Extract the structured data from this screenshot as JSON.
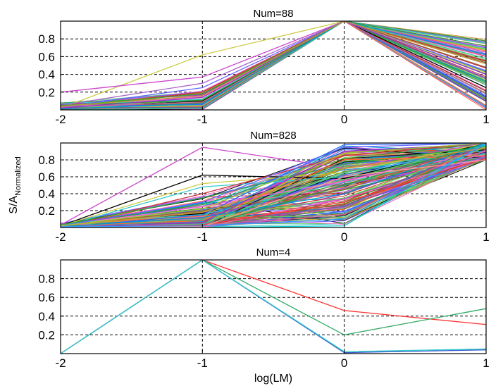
{
  "chart_data": [
    {
      "type": "line",
      "title": "Num=88",
      "x": [
        -2,
        -1,
        0,
        1
      ],
      "xlim": [
        -2,
        1
      ],
      "ylim": [
        0,
        1
      ],
      "xticks": [
        "-2",
        "-1",
        "0",
        "1"
      ],
      "yticks": [
        "0.2",
        "0.4",
        "0.6",
        "0.8"
      ],
      "grid": true,
      "series_count": 88,
      "series": [
        {
          "color": "#cccc44",
          "values": [
            0.02,
            0.62,
            1.0,
            0.42
          ]
        },
        {
          "color": "#cc44cc",
          "values": [
            0.2,
            0.37,
            1.0,
            0.65
          ]
        },
        {
          "color": "#aa66cc",
          "values": [
            0.05,
            0.3,
            1.0,
            0.76
          ]
        },
        {
          "color": "#6666ff",
          "values": [
            0.03,
            0.25,
            1.0,
            0.7
          ]
        },
        {
          "color": "#cc3333",
          "values": [
            0.02,
            0.2,
            1.0,
            0.55
          ]
        },
        {
          "color": "#33aa33",
          "values": [
            0.04,
            0.18,
            1.0,
            0.3
          ]
        },
        {
          "color": "#ff66cc",
          "values": [
            0.03,
            0.15,
            1.0,
            0.6
          ]
        },
        {
          "color": "#33cccc",
          "values": [
            0.05,
            0.12,
            1.0,
            0.75
          ]
        },
        {
          "color": "#000000",
          "values": [
            0.01,
            0.1,
            1.0,
            0.25
          ]
        },
        {
          "color": "#996633",
          "values": [
            0.02,
            0.08,
            1.0,
            0.48
          ]
        },
        {
          "color": "#3366ff",
          "values": [
            0.04,
            0.06,
            1.0,
            0.1
          ]
        },
        {
          "color": "#66cc66",
          "values": [
            0.03,
            0.05,
            1.0,
            0.68
          ]
        },
        {
          "color": "#ff6633",
          "values": [
            0.01,
            0.04,
            1.0,
            0.05
          ]
        },
        {
          "color": "#666699",
          "values": [
            0.02,
            0.03,
            1.0,
            0.35
          ]
        },
        {
          "color": "#33cc99",
          "values": [
            0.0,
            0.02,
            1.0,
            0.58
          ]
        },
        {
          "color": "#cc6699",
          "values": [
            0.03,
            0.09,
            1.0,
            0.18
          ]
        },
        {
          "color": "#339933",
          "values": [
            0.05,
            0.11,
            1.0,
            0.72
          ]
        },
        {
          "color": "#9933cc",
          "values": [
            0.02,
            0.14,
            1.0,
            0.4
          ]
        },
        {
          "color": "#0099cc",
          "values": [
            0.01,
            0.07,
            1.0,
            0.62
          ]
        },
        {
          "color": "#cc9933",
          "values": [
            0.04,
            0.16,
            1.0,
            0.52
          ]
        }
      ]
    },
    {
      "type": "line",
      "title": "Num=828",
      "ylabel": "S/A",
      "ylabel_subscript": "Normalized",
      "x": [
        -2,
        -1,
        0,
        1
      ],
      "xlim": [
        -2,
        1
      ],
      "ylim": [
        0,
        1
      ],
      "xticks": [
        "-2",
        "-1",
        "0",
        "1"
      ],
      "yticks": [
        "0.2",
        "0.4",
        "0.6",
        "0.8"
      ],
      "grid": true,
      "series_count": 828,
      "series": [
        {
          "color": "#cc44cc",
          "values": [
            0.03,
            0.95,
            0.7,
            1.0
          ]
        },
        {
          "color": "#000000",
          "values": [
            0.02,
            0.62,
            0.58,
            1.0
          ]
        },
        {
          "color": "#cccc44",
          "values": [
            0.02,
            0.52,
            0.65,
            1.0
          ]
        },
        {
          "color": "#33cccc",
          "values": [
            0.01,
            0.48,
            0.6,
            0.98
          ]
        },
        {
          "color": "#cc3333",
          "values": [
            0.0,
            0.4,
            0.85,
            1.0
          ]
        },
        {
          "color": "#33aa33",
          "values": [
            0.03,
            0.35,
            0.75,
            0.96
          ]
        },
        {
          "color": "#6666ff",
          "values": [
            0.02,
            0.3,
            0.95,
            1.0
          ]
        },
        {
          "color": "#ff66cc",
          "values": [
            0.01,
            0.25,
            0.55,
            0.9
          ]
        },
        {
          "color": "#996633",
          "values": [
            0.02,
            0.2,
            0.45,
            1.0
          ]
        },
        {
          "color": "#3366ff",
          "values": [
            0.0,
            0.15,
            0.98,
            1.0
          ]
        },
        {
          "color": "#66cc66",
          "values": [
            0.01,
            0.1,
            0.35,
            0.95
          ]
        },
        {
          "color": "#ff6633",
          "values": [
            0.02,
            0.08,
            0.8,
            0.85
          ]
        },
        {
          "color": "#666699",
          "values": [
            0.0,
            0.05,
            0.25,
            1.0
          ]
        },
        {
          "color": "#33cc99",
          "values": [
            0.01,
            0.04,
            0.65,
            0.97
          ]
        },
        {
          "color": "#cc6699",
          "values": [
            0.02,
            0.03,
            0.15,
            0.92
          ]
        },
        {
          "color": "#339933",
          "values": [
            0.01,
            0.02,
            0.5,
            1.0
          ]
        },
        {
          "color": "#9933cc",
          "values": [
            0.0,
            0.06,
            0.9,
            0.99
          ]
        },
        {
          "color": "#0099cc",
          "values": [
            0.01,
            0.12,
            0.4,
            1.0
          ]
        },
        {
          "color": "#cc9933",
          "values": [
            0.02,
            0.18,
            0.7,
            0.94
          ]
        },
        {
          "color": "#ff3333",
          "values": [
            0.0,
            0.03,
            0.3,
            0.82
          ]
        },
        {
          "color": "#ff9999",
          "values": [
            0.01,
            0.01,
            0.6,
            0.8
          ]
        },
        {
          "color": "#00cccc",
          "values": [
            0.0,
            0.0,
            0.02,
            1.0
          ]
        },
        {
          "color": "#3399ff",
          "values": [
            0.01,
            0.02,
            0.1,
            0.99
          ]
        },
        {
          "color": "#99cc33",
          "values": [
            0.02,
            0.22,
            0.88,
            1.0
          ]
        }
      ]
    },
    {
      "type": "line",
      "title": "Num=4",
      "xlabel": "log(LM)",
      "x": [
        -2,
        -1,
        0,
        1
      ],
      "xlim": [
        -2,
        1
      ],
      "ylim": [
        0,
        1
      ],
      "xticks": [
        "-2",
        "-1",
        "0",
        "1"
      ],
      "yticks": [
        "0.2",
        "0.4",
        "0.6",
        "0.8"
      ],
      "grid": true,
      "series_count": 4,
      "series": [
        {
          "color": "#ff3333",
          "values": [
            0.0,
            1.0,
            0.46,
            0.31
          ]
        },
        {
          "color": "#33aa66",
          "values": [
            0.0,
            1.0,
            0.2,
            0.48
          ]
        },
        {
          "color": "#3355cc",
          "values": [
            0.0,
            1.0,
            0.01,
            0.04
          ]
        },
        {
          "color": "#33cccc",
          "values": [
            0.0,
            1.0,
            0.02,
            0.05
          ]
        }
      ]
    }
  ]
}
